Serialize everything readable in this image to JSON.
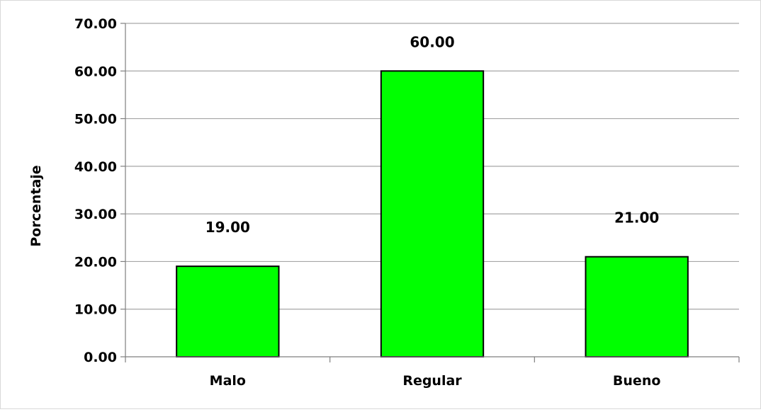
{
  "chart_data": {
    "type": "bar",
    "categories": [
      "Malo",
      "Regular",
      "Bueno"
    ],
    "values": [
      19.0,
      60.0,
      21.0
    ],
    "data_labels": [
      "19.00",
      "60.00",
      "21.00"
    ],
    "title": "",
    "xlabel": "",
    "ylabel": "Porcentaje",
    "ylim": [
      0,
      70
    ],
    "y_ticks": [
      "0.00",
      "10.00",
      "20.00",
      "30.00",
      "40.00",
      "50.00",
      "60.00",
      "70.00"
    ],
    "grid": true,
    "legend": "none",
    "bar_color": "#00ff00",
    "bar_border_color": "#000000",
    "grid_color": "#a6a6a6"
  }
}
